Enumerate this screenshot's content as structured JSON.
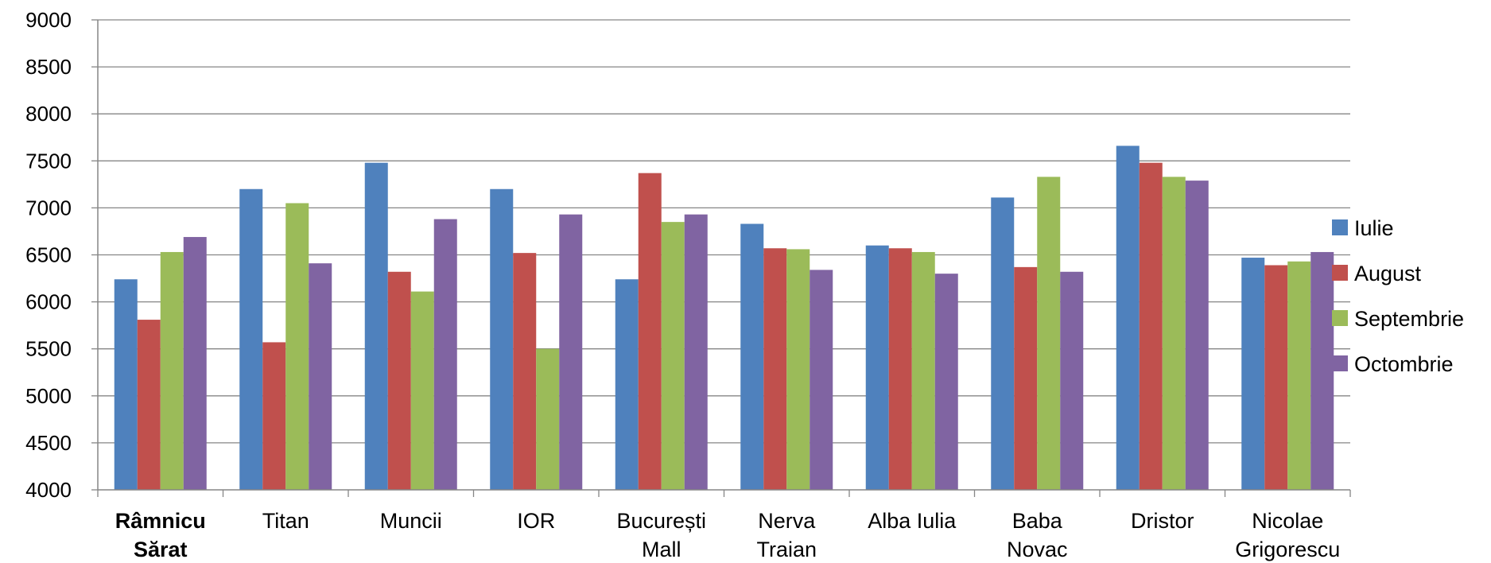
{
  "chart_data": {
    "type": "bar",
    "categories": [
      {
        "lines": [
          "Râmnicu",
          "Sărat"
        ],
        "bold": true
      },
      {
        "lines": [
          "Titan"
        ],
        "bold": false
      },
      {
        "lines": [
          "Muncii"
        ],
        "bold": false
      },
      {
        "lines": [
          "IOR"
        ],
        "bold": false
      },
      {
        "lines": [
          "București",
          "Mall"
        ],
        "bold": false
      },
      {
        "lines": [
          "Nerva",
          "Traian"
        ],
        "bold": false
      },
      {
        "lines": [
          "Alba Iulia"
        ],
        "bold": false
      },
      {
        "lines": [
          "Baba",
          "Novac"
        ],
        "bold": false
      },
      {
        "lines": [
          "Dristor"
        ],
        "bold": false
      },
      {
        "lines": [
          "Nicolae",
          "Grigorescu"
        ],
        "bold": false
      }
    ],
    "series": [
      {
        "name": "Iulie",
        "color": "#4f81bd",
        "values": [
          6240,
          7200,
          7480,
          7200,
          6240,
          6830,
          6600,
          7110,
          7660,
          6470
        ]
      },
      {
        "name": "August",
        "color": "#c0504d",
        "values": [
          5810,
          5570,
          6320,
          6520,
          7370,
          6570,
          6570,
          6370,
          7480,
          6390
        ]
      },
      {
        "name": "Septembrie",
        "color": "#9bbb59",
        "values": [
          6530,
          7050,
          6110,
          5500,
          6850,
          6560,
          6530,
          7330,
          7330,
          6430
        ]
      },
      {
        "name": "Octombrie",
        "color": "#8064a2",
        "values": [
          6690,
          6410,
          6880,
          6930,
          6930,
          6340,
          6300,
          6320,
          7290,
          6530
        ]
      }
    ],
    "ylim": [
      4000,
      9000
    ],
    "yticks": [
      "4000",
      "4500",
      "5000",
      "5500",
      "6000",
      "6500",
      "7000",
      "7500",
      "8000",
      "8500",
      "9000"
    ],
    "grid": true,
    "legend_position": "right",
    "title": "",
    "xlabel": "",
    "ylabel": ""
  }
}
